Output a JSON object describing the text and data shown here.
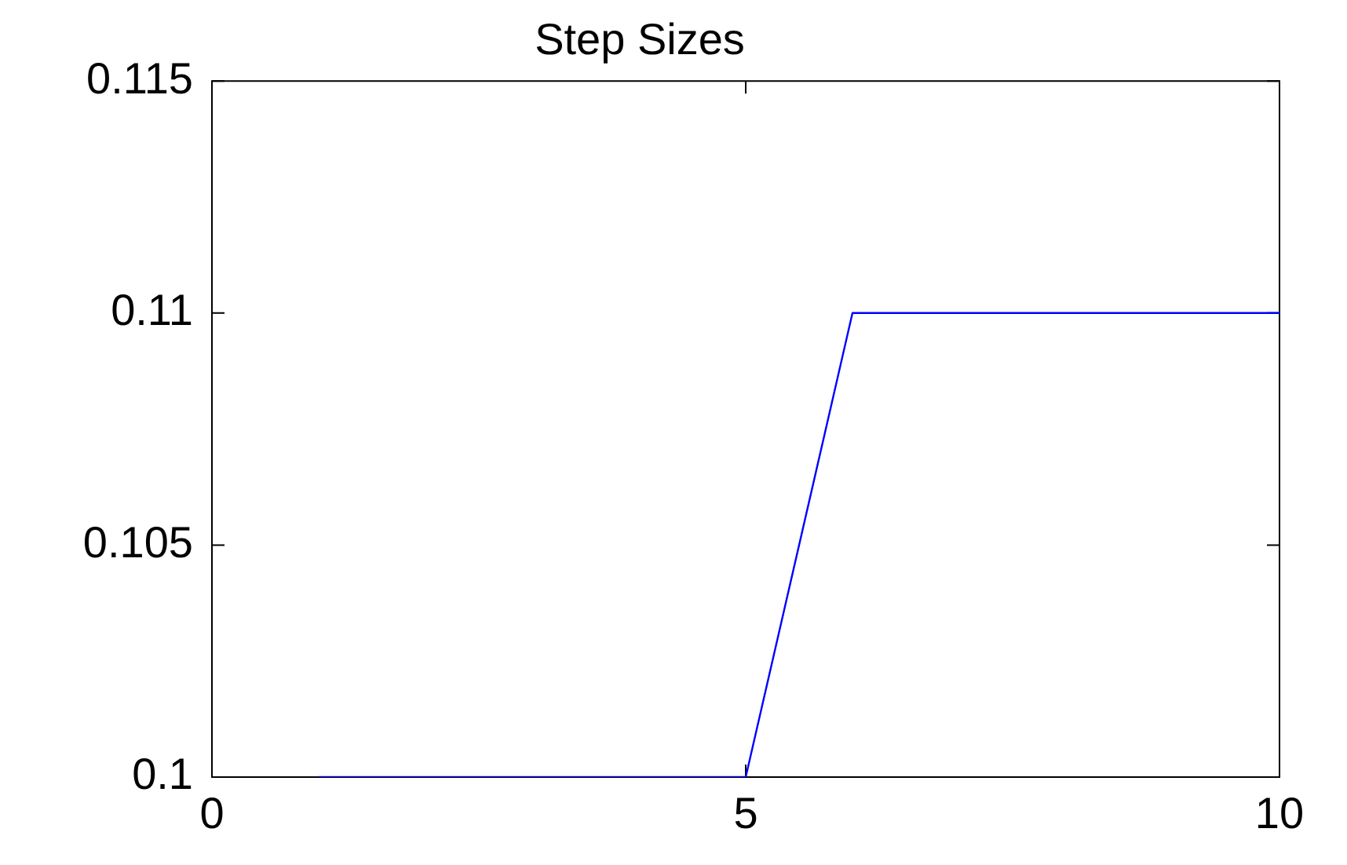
{
  "chart_data": {
    "type": "line",
    "title": "Step Sizes",
    "x": [
      1,
      2,
      3,
      4,
      5,
      6,
      7,
      8,
      9,
      10
    ],
    "series": [
      {
        "color": "#0000ff",
        "values": [
          0.1,
          0.1,
          0.1,
          0.1,
          0.1,
          0.11,
          0.11,
          0.11,
          0.11,
          0.11
        ]
      }
    ],
    "xlim": [
      0,
      10
    ],
    "xticks": [
      0,
      5,
      10
    ],
    "ylim": [
      0.1,
      0.115
    ],
    "yticks": [
      0.1,
      0.105,
      0.11,
      0.115
    ],
    "grid": false,
    "legend": false,
    "marker": "none",
    "line_style": "solid"
  }
}
